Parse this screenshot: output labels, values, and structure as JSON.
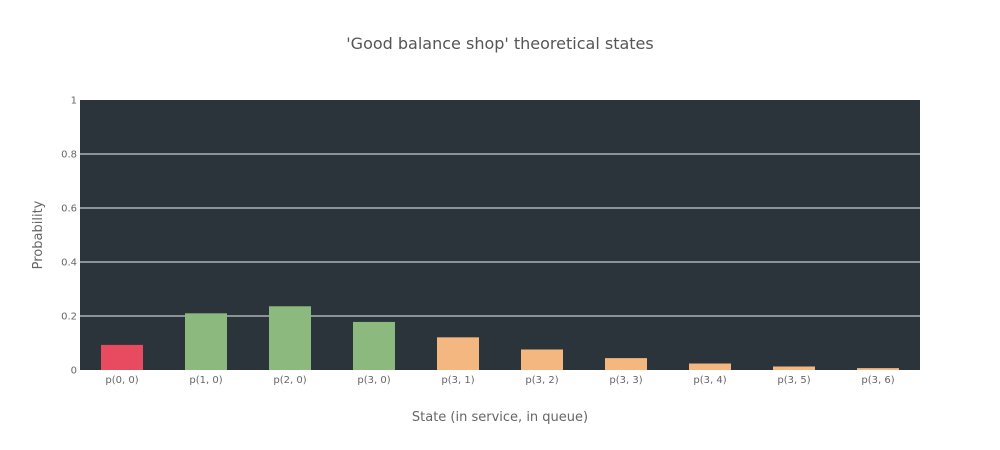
{
  "chart_data": {
    "type": "bar",
    "title": "'Good balance shop' theoretical states",
    "xlabel": "State (in service, in queue)",
    "ylabel": "Probability",
    "ylim": [
      0,
      1
    ],
    "yticks": [
      "0",
      "0.2",
      "0.4",
      "0.6",
      "0.8",
      "1"
    ],
    "grid": true,
    "background": "#2b343b",
    "grid_color": "#a9b3b7",
    "categories": [
      "p(0, 0)",
      "p(1, 0)",
      "p(2, 0)",
      "p(3, 0)",
      "p(3, 1)",
      "p(3, 2)",
      "p(3, 3)",
      "p(3, 4)",
      "p(3, 5)",
      "p(3, 6)"
    ],
    "values": [
      0.093,
      0.21,
      0.236,
      0.178,
      0.121,
      0.076,
      0.044,
      0.024,
      0.013,
      0.007
    ],
    "colors": [
      "#e84a5f",
      "#8cb97e",
      "#8cb97e",
      "#8cb97e",
      "#f4b780",
      "#f4b780",
      "#f4b780",
      "#f4b780",
      "#f4b780",
      "#f4b780"
    ]
  }
}
